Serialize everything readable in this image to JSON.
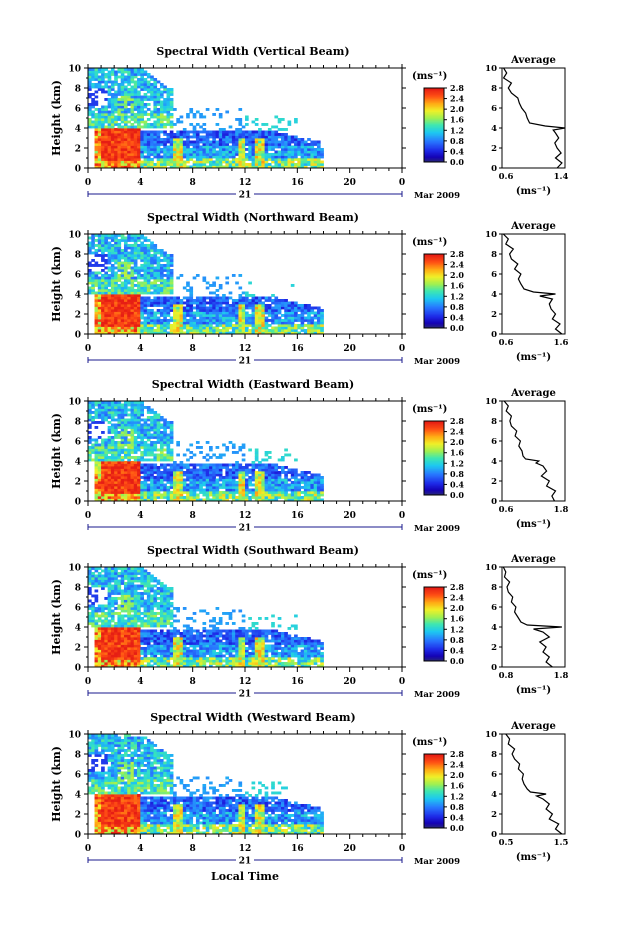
{
  "chart_data": [
    {
      "type": "heatmap",
      "title": "Spectral Width (Vertical Beam)",
      "ylabel": "Height (km)",
      "ylim": [
        0,
        10
      ],
      "yticks": [
        "0",
        "2",
        "4",
        "6",
        "8",
        "10"
      ],
      "xlim": [
        0,
        24
      ],
      "xticks": [
        "0",
        "4",
        "8",
        "12",
        "16",
        "20",
        "0"
      ],
      "date_day": "21",
      "date_label": "Mar 2009",
      "colorbar": {
        "unit": "(ms⁻¹)",
        "ticks": [
          "0.0",
          "0.4",
          "0.8",
          "1.2",
          "1.6",
          "2.0",
          "2.4",
          "2.8"
        ],
        "range": [
          0,
          2.8
        ]
      },
      "average": {
        "title": "Average",
        "xlabel": "(ms⁻¹)",
        "xticks": [
          "0.6",
          "1.4"
        ],
        "xlim": [
          0.6,
          1.4
        ],
        "height_km": [
          0,
          0.5,
          1,
          1.5,
          2,
          2.5,
          3,
          3.5,
          3.8,
          4,
          4.2,
          4.5,
          5,
          5.5,
          6,
          6.5,
          7,
          7.5,
          8,
          8.5,
          9,
          9.5,
          10
        ],
        "width": [
          1.3,
          1.36,
          1.28,
          1.35,
          1.3,
          1.27,
          1.32,
          1.28,
          1.25,
          1.4,
          1.15,
          0.95,
          0.92,
          0.9,
          0.85,
          0.82,
          0.8,
          0.72,
          0.68,
          0.72,
          0.62,
          0.66,
          0.62
        ]
      }
    },
    {
      "type": "heatmap",
      "title": "Spectral Width (Northward Beam)",
      "ylabel": "Height (km)",
      "ylim": [
        0,
        10
      ],
      "yticks": [
        "0",
        "2",
        "4",
        "6",
        "8",
        "10"
      ],
      "xlim": [
        0,
        24
      ],
      "xticks": [
        "0",
        "4",
        "8",
        "12",
        "16",
        "20",
        "0"
      ],
      "date_day": "21",
      "date_label": "Mar 2009",
      "colorbar": {
        "unit": "(ms⁻¹)",
        "ticks": [
          "0.0",
          "0.4",
          "0.8",
          "1.2",
          "1.6",
          "2.0",
          "2.4",
          "2.8"
        ],
        "range": [
          0,
          2.8
        ]
      },
      "average": {
        "title": "Average",
        "xlabel": "(ms⁻¹)",
        "xticks": [
          "0.6",
          "1.6"
        ],
        "xlim": [
          0.6,
          1.6
        ],
        "height_km": [
          0,
          0.5,
          1,
          1.5,
          2,
          2.5,
          3,
          3.5,
          3.8,
          4,
          4.2,
          4.5,
          5,
          5.5,
          6,
          6.5,
          7,
          7.5,
          8,
          8.5,
          9,
          9.5,
          10
        ],
        "width": [
          1.55,
          1.45,
          1.52,
          1.4,
          1.45,
          1.38,
          1.35,
          1.4,
          1.2,
          1.45,
          1.1,
          0.95,
          0.9,
          0.86,
          0.9,
          0.8,
          0.85,
          0.75,
          0.72,
          0.78,
          0.66,
          0.7,
          0.62
        ]
      }
    },
    {
      "type": "heatmap",
      "title": "Spectral Width (Eastward Beam)",
      "ylabel": "Height (km)",
      "ylim": [
        0,
        10
      ],
      "yticks": [
        "0",
        "2",
        "4",
        "6",
        "8",
        "10"
      ],
      "xlim": [
        0,
        24
      ],
      "xticks": [
        "0",
        "4",
        "8",
        "12",
        "16",
        "20",
        "0"
      ],
      "date_day": "21",
      "date_label": "Mar 2009",
      "colorbar": {
        "unit": "(ms⁻¹)",
        "ticks": [
          "0.0",
          "0.4",
          "0.8",
          "1.2",
          "1.6",
          "2.0",
          "2.4",
          "2.8"
        ],
        "range": [
          0,
          2.8
        ]
      },
      "average": {
        "title": "Average",
        "xlabel": "(ms⁻¹)",
        "xticks": [
          "0.6",
          "1.8"
        ],
        "xlim": [
          0.6,
          1.8
        ],
        "height_km": [
          0,
          0.5,
          1,
          1.5,
          2,
          2.5,
          3,
          3.5,
          3.8,
          4,
          4.2,
          4.5,
          5,
          5.5,
          6,
          6.5,
          7,
          7.5,
          8,
          8.5,
          9,
          9.5,
          10
        ],
        "width": [
          1.6,
          1.55,
          1.62,
          1.45,
          1.5,
          1.35,
          1.45,
          1.38,
          1.25,
          1.3,
          1.05,
          1.0,
          0.98,
          0.92,
          0.95,
          0.85,
          0.88,
          0.78,
          0.75,
          0.78,
          0.68,
          0.72,
          0.64
        ]
      }
    },
    {
      "type": "heatmap",
      "title": "Spectral Width (Southward Beam)",
      "ylabel": "Height (km)",
      "ylim": [
        0,
        10
      ],
      "yticks": [
        "0",
        "2",
        "4",
        "6",
        "8",
        "10"
      ],
      "xlim": [
        0,
        24
      ],
      "xticks": [
        "0",
        "4",
        "8",
        "12",
        "16",
        "20",
        "0"
      ],
      "date_day": "21",
      "date_label": "Mar 2009",
      "colorbar": {
        "unit": "(ms⁻¹)",
        "ticks": [
          "0.0",
          "0.4",
          "0.8",
          "1.2",
          "1.6",
          "2.0",
          "2.4",
          "2.8"
        ],
        "range": [
          0,
          2.8
        ]
      },
      "average": {
        "title": "Average",
        "xlabel": "(ms⁻¹)",
        "xticks": [
          "0.8",
          "1.8"
        ],
        "xlim": [
          0.8,
          1.8
        ],
        "height_km": [
          0,
          0.5,
          1,
          1.5,
          2,
          2.5,
          3,
          3.5,
          3.8,
          4,
          4.2,
          4.5,
          5,
          5.5,
          6,
          6.5,
          7,
          7.5,
          8,
          8.5,
          9,
          9.5,
          10
        ],
        "width": [
          1.6,
          1.5,
          1.55,
          1.45,
          1.5,
          1.4,
          1.55,
          1.45,
          1.3,
          1.75,
          1.2,
          1.1,
          1.05,
          1.0,
          1.02,
          0.95,
          0.97,
          0.9,
          0.88,
          0.92,
          0.84,
          0.86,
          0.82
        ]
      }
    },
    {
      "type": "heatmap",
      "title": "Spectral Width (Westward Beam)",
      "ylabel": "Height (km)",
      "ylim": [
        0,
        10
      ],
      "yticks": [
        "0",
        "2",
        "4",
        "6",
        "8",
        "10"
      ],
      "xlim": [
        0,
        24
      ],
      "xticks": [
        "0",
        "4",
        "8",
        "12",
        "16",
        "20",
        "0"
      ],
      "date_day": "21",
      "date_label": "Mar 2009",
      "xlabel": "Local Time",
      "colorbar": {
        "unit": "(ms⁻¹)",
        "ticks": [
          "0.0",
          "0.4",
          "0.8",
          "1.2",
          "1.6",
          "2.0",
          "2.4",
          "2.8"
        ],
        "range": [
          0,
          2.8
        ]
      },
      "average": {
        "title": "Average",
        "xlabel": "(ms⁻¹)",
        "xticks": [
          "0.5",
          "1.5"
        ],
        "xlim": [
          0.5,
          1.5
        ],
        "height_km": [
          0,
          0.5,
          1,
          1.5,
          2,
          2.5,
          3,
          3.5,
          3.8,
          4,
          4.2,
          4.5,
          5,
          5.5,
          6,
          6.5,
          7,
          7.5,
          8,
          8.5,
          9,
          9.5,
          10
        ],
        "width": [
          1.45,
          1.35,
          1.4,
          1.25,
          1.3,
          1.2,
          1.25,
          1.15,
          1.05,
          1.2,
          0.95,
          0.9,
          0.85,
          0.82,
          0.84,
          0.76,
          0.78,
          0.7,
          0.66,
          0.7,
          0.6,
          0.62,
          0.56
        ]
      }
    }
  ]
}
